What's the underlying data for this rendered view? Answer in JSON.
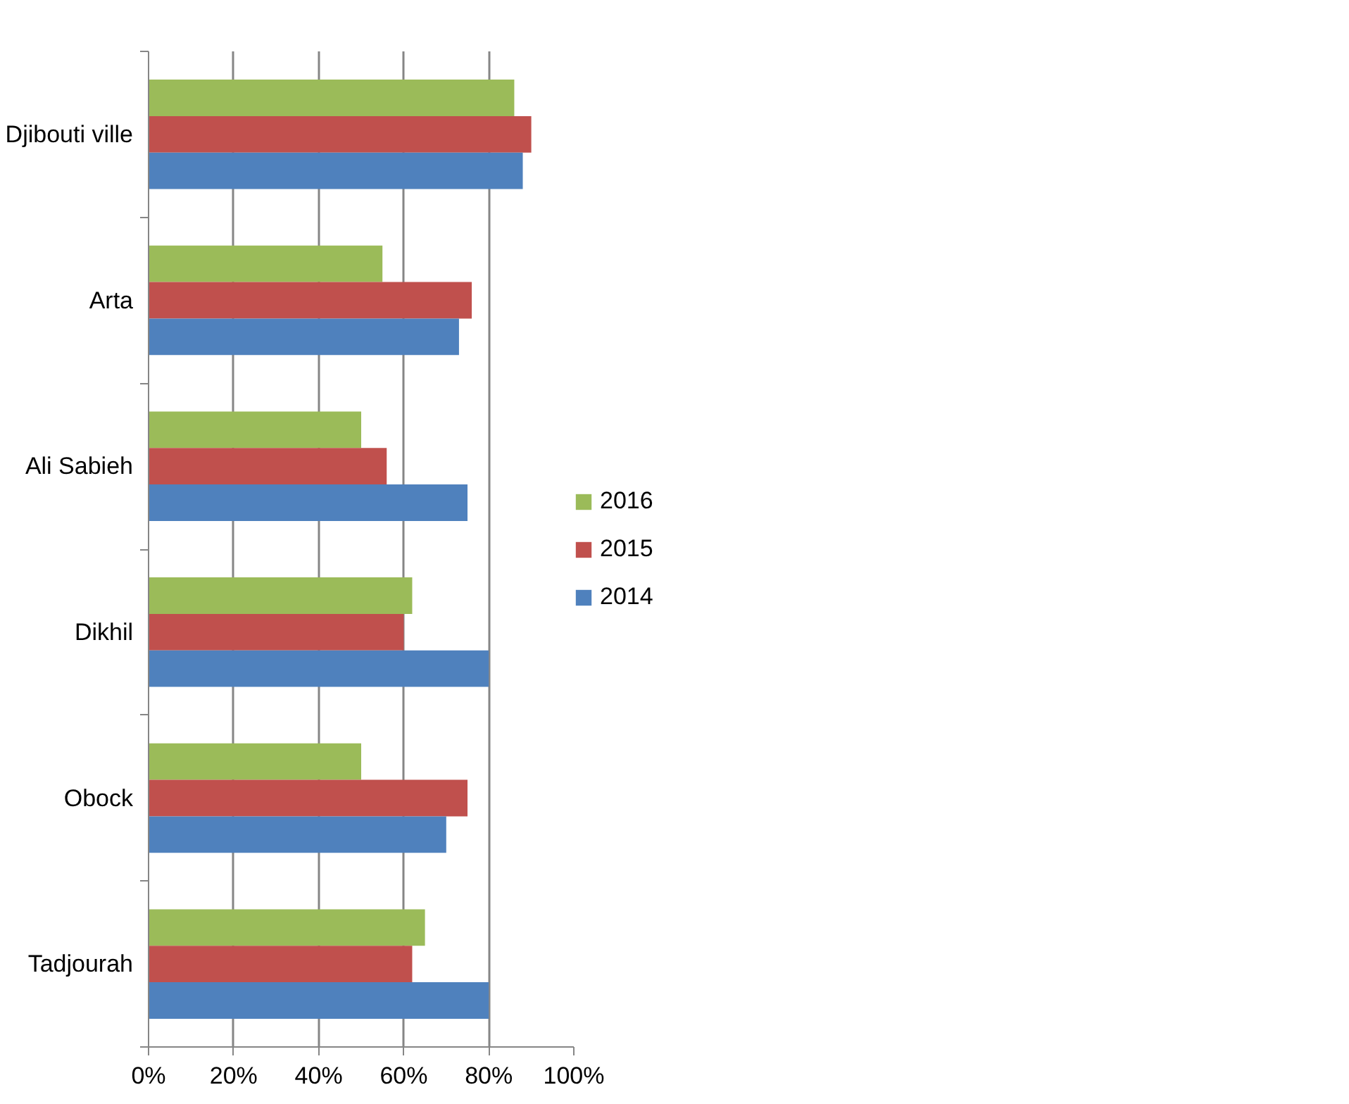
{
  "chart_data": {
    "type": "bar",
    "orientation": "horizontal",
    "categories": [
      "Djibouti ville",
      "Arta",
      "Ali Sabieh",
      "Dikhil",
      "Obock",
      "Tadjourah"
    ],
    "series": [
      {
        "name": "2016",
        "color": "#9bbb59",
        "values": [
          86,
          55,
          50,
          62,
          50,
          65
        ]
      },
      {
        "name": "2015",
        "color": "#c0504d",
        "values": [
          90,
          76,
          56,
          60,
          75,
          62
        ]
      },
      {
        "name": "2014",
        "color": "#4f81bd",
        "values": [
          88,
          73,
          75,
          80,
          70,
          80
        ]
      }
    ],
    "xlim": [
      0,
      100
    ],
    "xticks": [
      {
        "value": 0,
        "label": "0%"
      },
      {
        "value": 20,
        "label": "20%"
      },
      {
        "value": 40,
        "label": "40%"
      },
      {
        "value": 60,
        "label": "60%"
      },
      {
        "value": 80,
        "label": "80%"
      },
      {
        "value": 100,
        "label": "100%"
      }
    ],
    "grid": "x",
    "legend": "right"
  }
}
